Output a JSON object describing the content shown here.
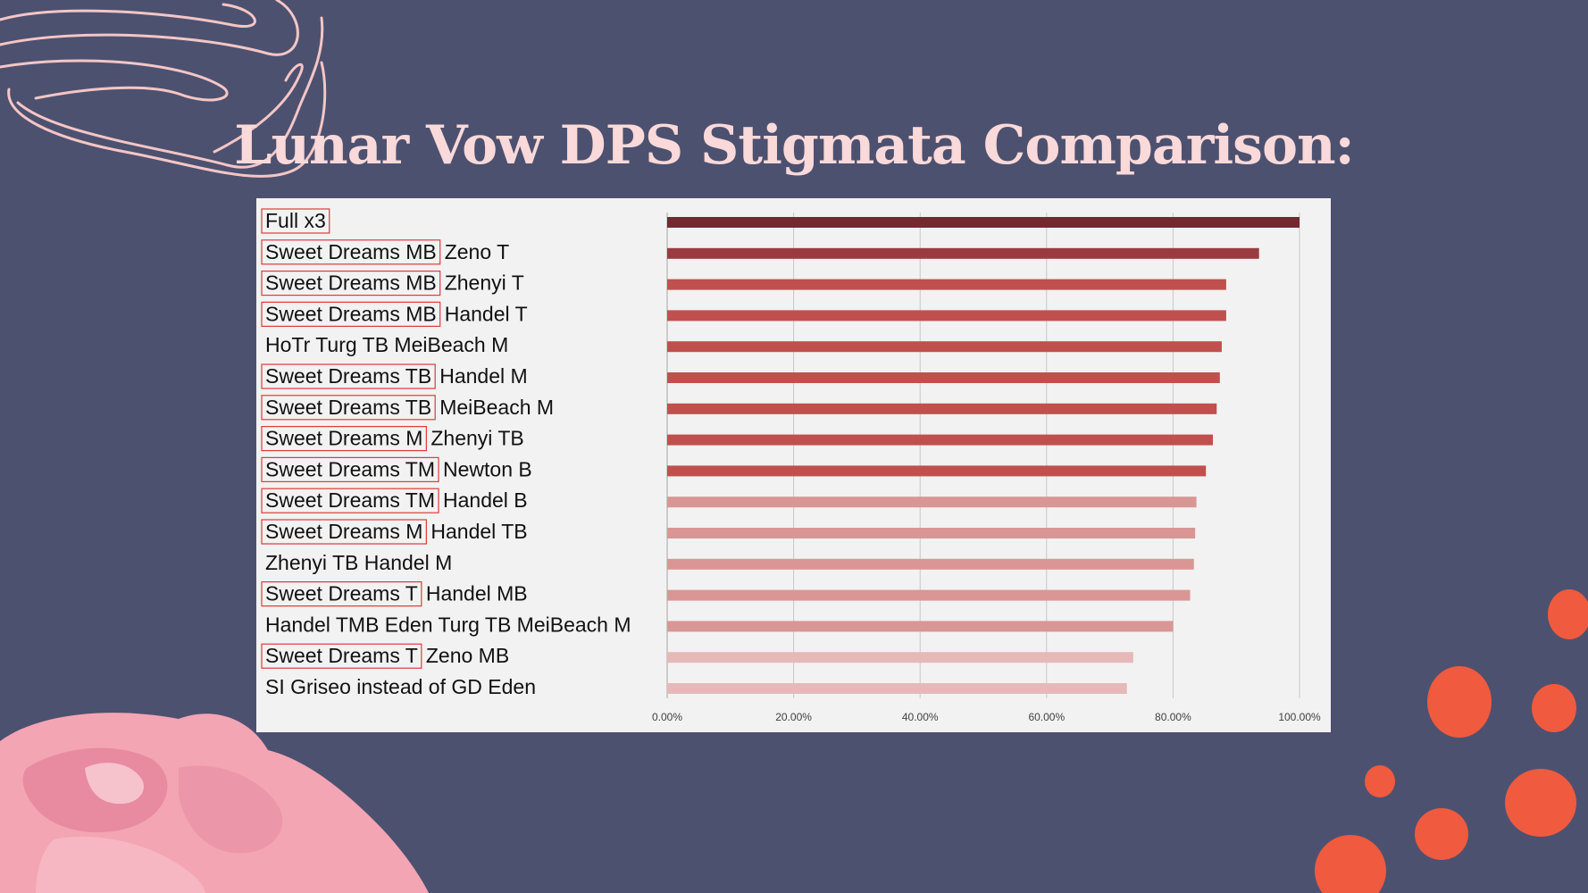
{
  "title": "Lunar Vow DPS Stigmata Comparison:",
  "colors": {
    "background": "#4d5170",
    "panel": "#f2f2f2",
    "title": "#f9d9d9",
    "box": "#e03a3a",
    "tier_top": "#722a2f",
    "tier_dark": "#9b3b3f",
    "tier_red": "#c0504d",
    "tier_pink": "#d99694",
    "tier_light": "#e6b9b8",
    "dots": "#f05a3e"
  },
  "chart_data": {
    "type": "bar",
    "orientation": "horizontal",
    "title": "Lunar Vow DPS Stigmata Comparison:",
    "xlabel": "",
    "ylabel": "",
    "xlim": [
      0,
      1
    ],
    "grid": true,
    "tick_labels": [
      "0.00%",
      "20.00%",
      "40.00%",
      "60.00%",
      "80.00%",
      "100.00%"
    ],
    "categories": [
      {
        "boxed": "Full x3",
        "rest": ""
      },
      {
        "boxed": "Sweet Dreams MB",
        "rest": "Zeno T"
      },
      {
        "boxed": "Sweet Dreams MB",
        "rest": "Zhenyi T"
      },
      {
        "boxed": "Sweet Dreams MB",
        "rest": "Handel T"
      },
      {
        "boxed": "",
        "rest": "HoTr Turg TB MeiBeach M"
      },
      {
        "boxed": "Sweet Dreams TB",
        "rest": "Handel M"
      },
      {
        "boxed": "Sweet Dreams TB",
        "rest": "MeiBeach M"
      },
      {
        "boxed": "Sweet Dreams M",
        "rest": "Zhenyi TB"
      },
      {
        "boxed": "Sweet Dreams TM",
        "rest": "Newton B"
      },
      {
        "boxed": "Sweet Dreams TM",
        "rest": "Handel B"
      },
      {
        "boxed": "Sweet Dreams M",
        "rest": "Handel TB"
      },
      {
        "boxed": "",
        "rest": "Zhenyi TB Handel M"
      },
      {
        "boxed": "Sweet Dreams T",
        "rest": "Handel MB"
      },
      {
        "boxed": "",
        "rest": "Handel TMB Eden Turg TB MeiBeach M"
      },
      {
        "boxed": "Sweet Dreams T",
        "rest": "Zeno MB"
      },
      {
        "boxed": "",
        "rest": "SI Griseo instead of GD Eden"
      }
    ],
    "values": [
      1.0,
      0.936,
      0.884,
      0.884,
      0.877,
      0.874,
      0.869,
      0.863,
      0.852,
      0.837,
      0.835,
      0.833,
      0.827,
      0.8,
      0.737,
      0.727
    ],
    "tiers": [
      "top",
      "dark",
      "red",
      "red",
      "red",
      "red",
      "red",
      "red",
      "red",
      "pink",
      "pink",
      "pink",
      "pink",
      "pink",
      "light",
      "light"
    ]
  }
}
